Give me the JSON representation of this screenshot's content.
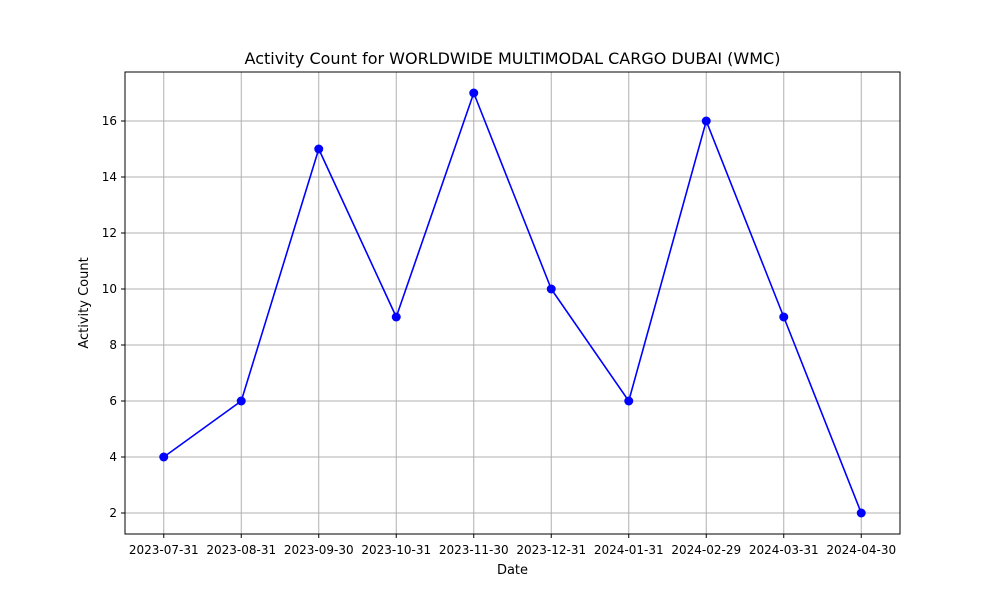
{
  "chart_data": {
    "type": "line",
    "title": "Activity Count for WORLDWIDE MULTIMODAL CARGO DUBAI (WMC)",
    "xlabel": "Date",
    "ylabel": "Activity Count",
    "categories": [
      "2023-07-31",
      "2023-08-31",
      "2023-09-30",
      "2023-10-31",
      "2023-11-30",
      "2023-12-31",
      "2024-01-31",
      "2024-02-29",
      "2024-03-31",
      "2024-04-30"
    ],
    "series": [
      {
        "values": [
          4,
          6,
          15,
          9,
          17,
          10,
          6,
          16,
          9,
          2
        ]
      }
    ],
    "y_ticks": [
      2,
      4,
      6,
      8,
      10,
      12,
      14,
      16
    ],
    "ylim": [
      1.25,
      17.75
    ],
    "grid": true,
    "marker": "circle",
    "line_color": "#0000ff",
    "grid_color": "#b0b0b0"
  }
}
